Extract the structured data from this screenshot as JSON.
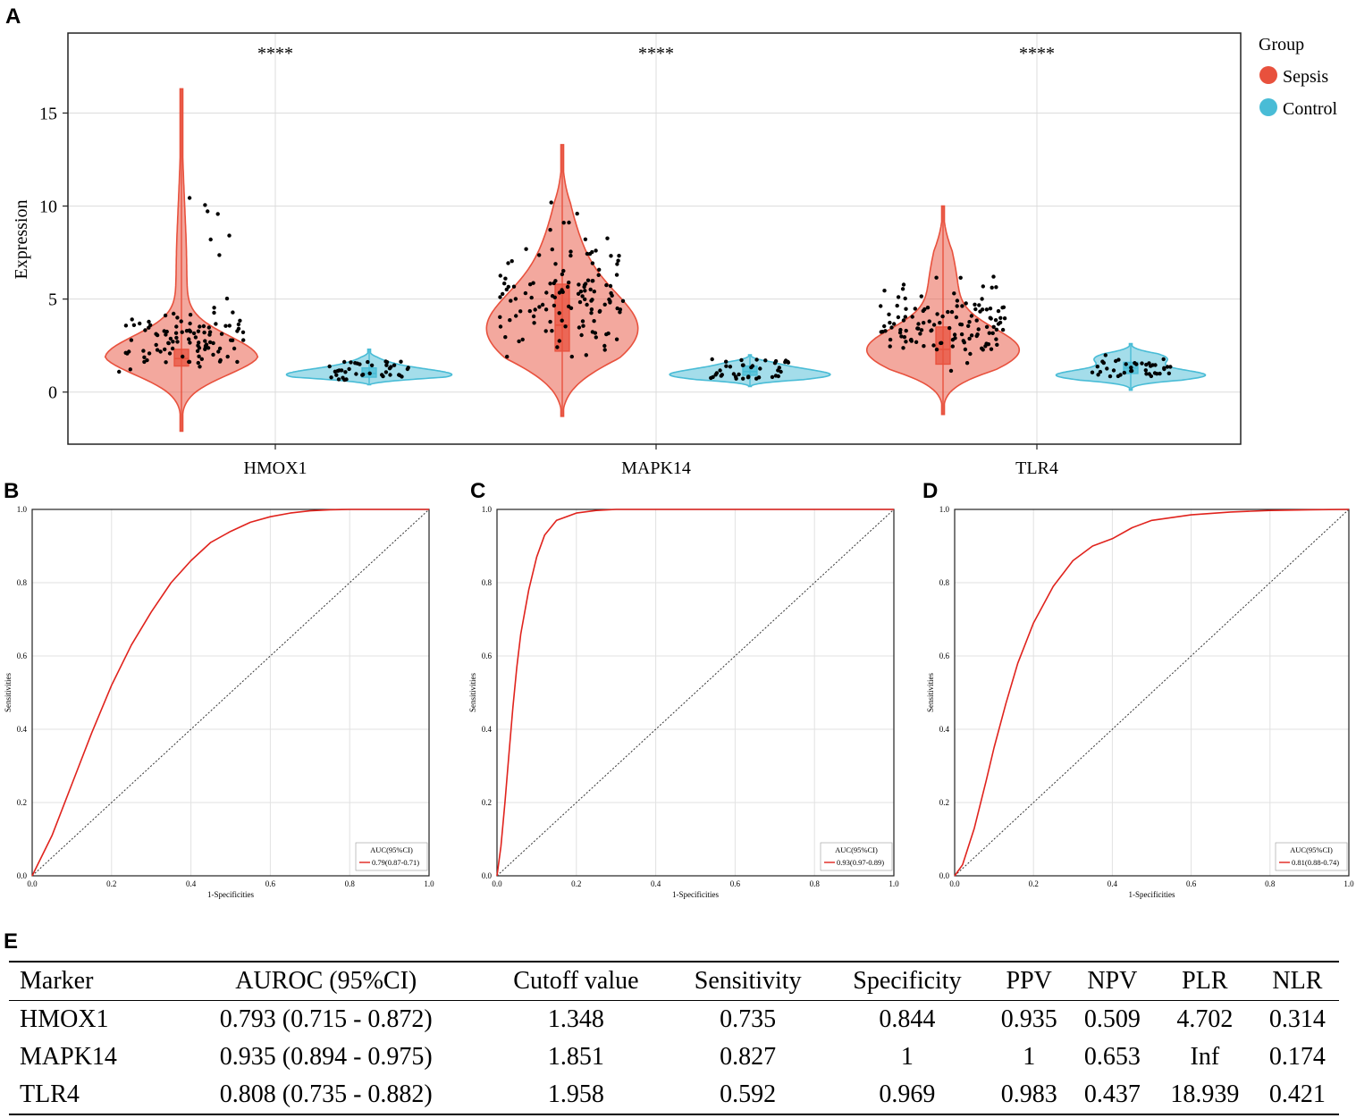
{
  "panels": {
    "a": "A",
    "b": "B",
    "c": "C",
    "d": "D",
    "e": "E"
  },
  "violin": {
    "ylabel": "Expression",
    "yticks": [
      0,
      5,
      10,
      15
    ],
    "ylim": [
      -2.8,
      19.3
    ],
    "genes": [
      "HMOX1",
      "MAPK14",
      "TLR4"
    ],
    "significance": [
      "****",
      "****",
      "****"
    ],
    "legend": {
      "title": "Group",
      "items": [
        {
          "label": "Sepsis",
          "color": "#e8513d"
        },
        {
          "label": "Control",
          "color": "#49bcd6"
        }
      ]
    }
  },
  "chart_data": [
    {
      "type": "violin",
      "title": "",
      "xlabel": "",
      "ylabel": "Expression",
      "ylim": [
        -2.8,
        19.3
      ],
      "categories": [
        "HMOX1",
        "MAPK14",
        "TLR4"
      ],
      "series": [
        {
          "name": "Sepsis",
          "min": [
            -2.1,
            -1.3,
            -1.2
          ],
          "max": [
            16.3,
            13.3,
            10.0
          ],
          "median": [
            1.8,
            3.6,
            2.3
          ],
          "q1": [
            1.4,
            2.2,
            1.5
          ],
          "q3": [
            2.3,
            5.8,
            3.5
          ]
        },
        {
          "name": "Control",
          "min": [
            0.4,
            0.3,
            0.1
          ],
          "max": [
            2.3,
            2.0,
            2.6
          ],
          "median": [
            1.0,
            1.1,
            1.3
          ],
          "q1": [
            0.8,
            0.9,
            1.0
          ],
          "q3": [
            1.3,
            1.4,
            1.6
          ]
        }
      ]
    },
    {
      "type": "line",
      "panel": "B",
      "title": "",
      "xlabel": "1-Specificities",
      "ylabel": "Sensitivities",
      "xlim": [
        0,
        1
      ],
      "ylim": [
        0,
        1
      ],
      "ticks": [
        "0.0",
        "0.2",
        "0.4",
        "0.6",
        "0.8",
        "1.0"
      ],
      "series": [
        {
          "name": "ROC",
          "x": [
            0,
            0.05,
            0.1,
            0.15,
            0.2,
            0.25,
            0.3,
            0.35,
            0.4,
            0.45,
            0.5,
            0.55,
            0.6,
            0.65,
            0.7,
            0.75,
            0.8,
            1.0
          ],
          "y": [
            0,
            0.11,
            0.25,
            0.39,
            0.52,
            0.63,
            0.72,
            0.8,
            0.86,
            0.91,
            0.94,
            0.965,
            0.98,
            0.99,
            0.996,
            0.999,
            1.0,
            1.0
          ]
        },
        {
          "name": "reference",
          "x": [
            0,
            1
          ],
          "y": [
            0,
            1
          ]
        }
      ],
      "legend": {
        "title": "AUC(95%CI)",
        "entry": "0.79(0.87-0.71)"
      }
    },
    {
      "type": "line",
      "panel": "C",
      "title": "",
      "xlabel": "1-Specificities",
      "ylabel": "Sensitivities",
      "xlim": [
        0,
        1
      ],
      "ylim": [
        0,
        1
      ],
      "ticks": [
        "0.0",
        "0.2",
        "0.4",
        "0.6",
        "0.8",
        "1.0"
      ],
      "series": [
        {
          "name": "ROC",
          "x": [
            0,
            0.01,
            0.02,
            0.03,
            0.04,
            0.05,
            0.06,
            0.08,
            0.1,
            0.12,
            0.15,
            0.2,
            0.25,
            0.3,
            0.4,
            1.0
          ],
          "y": [
            0,
            0.08,
            0.2,
            0.33,
            0.46,
            0.57,
            0.66,
            0.78,
            0.87,
            0.93,
            0.97,
            0.99,
            0.997,
            1.0,
            1.0,
            1.0
          ]
        },
        {
          "name": "reference",
          "x": [
            0,
            1
          ],
          "y": [
            0,
            1
          ]
        }
      ],
      "legend": {
        "title": "AUC(95%CI)",
        "entry": "0.93(0.97-0.89)"
      }
    },
    {
      "type": "line",
      "panel": "D",
      "title": "",
      "xlabel": "1-Specificities",
      "ylabel": "Sensitivities",
      "xlim": [
        0,
        1
      ],
      "ylim": [
        0,
        1
      ],
      "ticks": [
        "0.0",
        "0.2",
        "0.4",
        "0.6",
        "0.8",
        "1.0"
      ],
      "series": [
        {
          "name": "ROC",
          "x": [
            0,
            0.02,
            0.05,
            0.08,
            0.1,
            0.13,
            0.16,
            0.2,
            0.25,
            0.3,
            0.35,
            0.4,
            0.45,
            0.5,
            0.6,
            0.7,
            0.8,
            0.9,
            1.0
          ],
          "y": [
            0,
            0.03,
            0.13,
            0.26,
            0.35,
            0.47,
            0.58,
            0.69,
            0.79,
            0.86,
            0.9,
            0.92,
            0.95,
            0.97,
            0.985,
            0.993,
            0.997,
            0.999,
            1.0
          ]
        },
        {
          "name": "reference",
          "x": [
            0,
            1
          ],
          "y": [
            0,
            1
          ]
        }
      ],
      "legend": {
        "title": "AUC(95%CI)",
        "entry": "0.81(0.88-0.74)"
      }
    },
    {
      "type": "table",
      "panel": "E",
      "columns": [
        "Marker",
        "AUROC (95%CI)",
        "Cutoff value",
        "Sensitivity",
        "Specificity",
        "PPV",
        "NPV",
        "PLR",
        "NLR"
      ],
      "rows": [
        [
          "HMOX1",
          "0.793 (0.715 - 0.872)",
          "1.348",
          "0.735",
          "0.844",
          "0.935",
          "0.509",
          "4.702",
          "0.314"
        ],
        [
          "MAPK14",
          "0.935 (0.894 - 0.975)",
          "1.851",
          "0.827",
          "1",
          "1",
          "0.653",
          "Inf",
          "0.174"
        ],
        [
          "TLR4",
          "0.808 (0.735 - 0.882)",
          "1.958",
          "0.592",
          "0.969",
          "0.983",
          "0.437",
          "18.939",
          "0.421"
        ]
      ]
    }
  ]
}
